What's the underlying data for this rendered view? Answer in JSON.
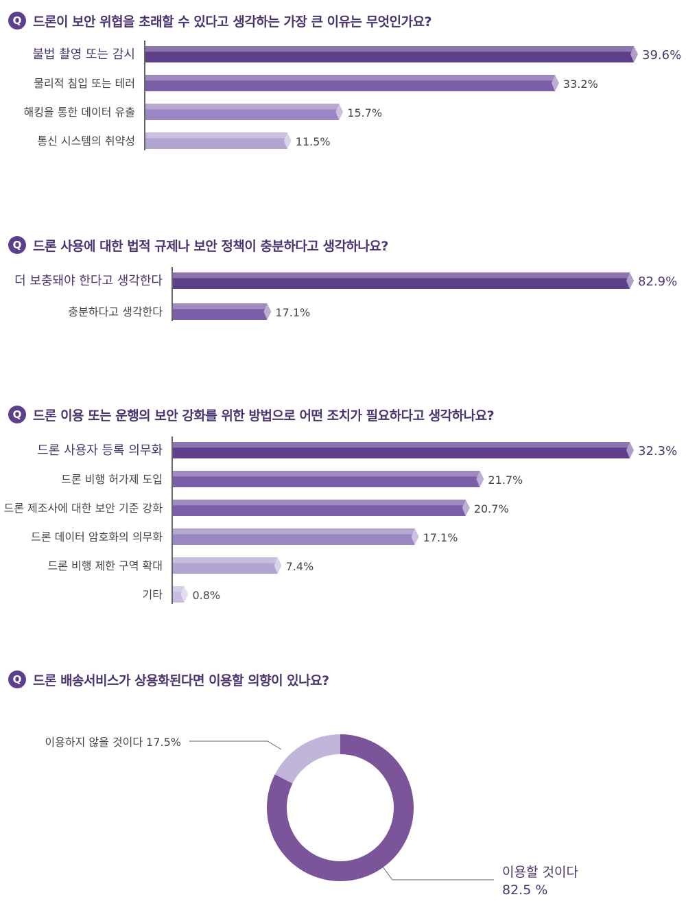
{
  "question_icon": "Q",
  "colors": {
    "bar_dark": "#5e3f8c",
    "bar_mid": "#7b5ea7",
    "bar_light": "#9a86c2",
    "bar_lighter": "#b3a5d2",
    "bar_lightest": "#c8bde0",
    "donut_main": "#7b5499",
    "donut_minor": "#c2b5da",
    "axis": "#333333",
    "highlight_text": "#4b3570"
  },
  "questions": [
    {
      "text": "드론이 보안 위협을 초래할 수 있다고 생각하는 가장 큰 이유는 무엇인가요?"
    },
    {
      "text": "드론 사용에 대한 법적 규제나 보안 정책이 충분하다고 생각하나요?"
    },
    {
      "text": "드론 이용 또는 운행의 보안 강화를 위한 방법으로 어떤 조치가 필요하다고 생각하나요?"
    },
    {
      "text": "드론 배송서비스가 상용화된다면 이용할 의향이 있나요?"
    }
  ],
  "chart_data": [
    {
      "type": "bar",
      "orientation": "horizontal",
      "categories": [
        "불법 촬영 또는 감시",
        "물리적 침입 또는 테러",
        "해킹을 통한 데이터 유출",
        "통신 시스템의 취약성"
      ],
      "values": [
        39.6,
        33.2,
        15.7,
        11.5
      ],
      "labels": [
        "39.6%",
        "33.2%",
        "15.7%",
        "11.5%"
      ]
    },
    {
      "type": "bar",
      "orientation": "horizontal",
      "categories": [
        "더 보충돼야 한다고 생각한다",
        "충분하다고 생각한다"
      ],
      "values": [
        82.9,
        17.1
      ],
      "labels": [
        "82.9%",
        "17.1%"
      ]
    },
    {
      "type": "bar",
      "orientation": "horizontal",
      "categories": [
        "드론 사용자 등록 의무화",
        "드론 비행 허가제 도입",
        "드론 제조사에 대한 보안 기준 강화",
        "드론 데이터 암호화의 의무화",
        "드론 비행 제한 구역 확대",
        "기타"
      ],
      "values": [
        32.3,
        21.7,
        20.7,
        17.1,
        7.4,
        0.8
      ],
      "labels": [
        "32.3%",
        "21.7%",
        "20.7%",
        "17.1%",
        "7.4%",
        "0.8%"
      ]
    },
    {
      "type": "pie",
      "donut": true,
      "categories": [
        "이용할 것이다",
        "이용하지 않을 것이다"
      ],
      "values": [
        82.5,
        17.5
      ],
      "labels": [
        "이용할 것이다",
        "82.5 %",
        "이용하지 않을 것이다 17.5%"
      ]
    }
  ]
}
